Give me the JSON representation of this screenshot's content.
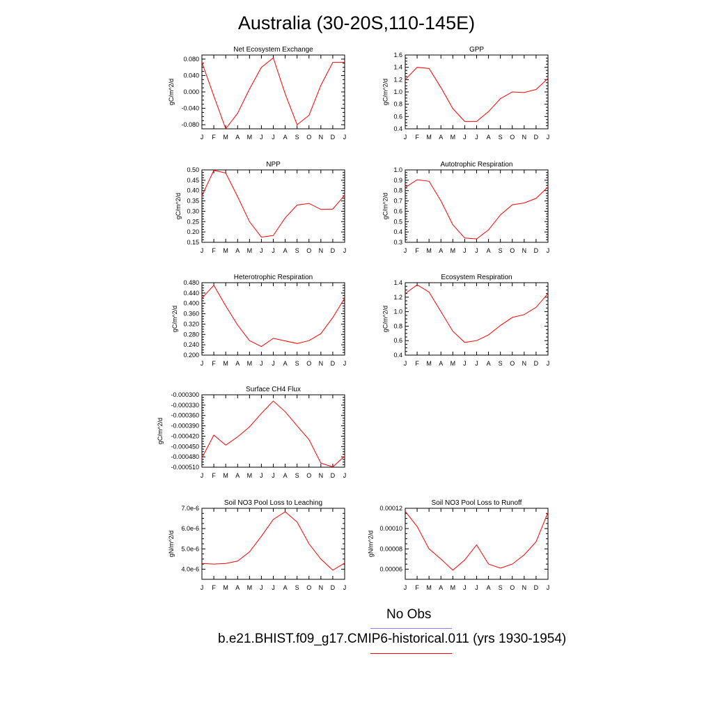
{
  "page_title": "Australia (30-20S,110-145E)",
  "colors": {
    "model_line": "#ff0000",
    "obs_line": "#8080ff",
    "axis": "#000000"
  },
  "legend": {
    "obs_label": "No Obs",
    "model_label": "b.e21.BHIST.f09_g17.CMIP6-historical.011 (yrs 1930-1954)"
  },
  "chart_data": [
    {
      "type": "line",
      "title": "Net Ecosystem Exchange",
      "ylabel": "gC/m^2/d",
      "xlabel": "",
      "x": [
        "J",
        "F",
        "M",
        "A",
        "M",
        "J",
        "J",
        "A",
        "S",
        "O",
        "N",
        "D",
        "J"
      ],
      "ylim": [
        -0.09,
        0.09
      ],
      "yticks": [
        -0.08,
        -0.04,
        0.0,
        0.04,
        0.08
      ],
      "ytick_labels": [
        "-0.080",
        "-0.040",
        "0.000",
        "0.040",
        "0.080"
      ],
      "series": [
        {
          "values": [
            0.072,
            -0.01,
            -0.09,
            -0.052,
            0.007,
            0.06,
            0.083,
            -0.005,
            -0.08,
            -0.057,
            0.016,
            0.072,
            0.072
          ]
        }
      ]
    },
    {
      "type": "line",
      "title": "GPP",
      "ylabel": "gC/m^2/d",
      "xlabel": "",
      "x": [
        "J",
        "F",
        "M",
        "A",
        "M",
        "J",
        "J",
        "A",
        "S",
        "O",
        "N",
        "D",
        "J"
      ],
      "ylim": [
        0.4,
        1.6
      ],
      "yticks": [
        0.4,
        0.6,
        0.8,
        1.0,
        1.2,
        1.4,
        1.6
      ],
      "ytick_labels": [
        "0.4",
        "0.6",
        "0.8",
        "1.0",
        "1.2",
        "1.4",
        "1.6"
      ],
      "series": [
        {
          "values": [
            1.2,
            1.4,
            1.38,
            1.07,
            0.73,
            0.52,
            0.52,
            0.68,
            0.89,
            1.0,
            0.99,
            1.04,
            1.22
          ]
        }
      ]
    },
    {
      "type": "line",
      "title": "NPP",
      "ylabel": "gC/m^2/d",
      "xlabel": "",
      "x": [
        "J",
        "F",
        "M",
        "A",
        "M",
        "J",
        "J",
        "A",
        "S",
        "O",
        "N",
        "D",
        "J"
      ],
      "ylim": [
        0.15,
        0.5
      ],
      "yticks": [
        0.15,
        0.2,
        0.25,
        0.3,
        0.35,
        0.4,
        0.45,
        0.5
      ],
      "ytick_labels": [
        "0.15",
        "0.20",
        "0.25",
        "0.30",
        "0.35",
        "0.40",
        "0.45",
        "0.50"
      ],
      "series": [
        {
          "values": [
            0.375,
            0.498,
            0.485,
            0.37,
            0.25,
            0.175,
            0.183,
            0.268,
            0.33,
            0.338,
            0.309,
            0.311,
            0.378
          ]
        }
      ]
    },
    {
      "type": "line",
      "title": "Autotrophic Respiration",
      "ylabel": "gC/m^2/d",
      "xlabel": "",
      "x": [
        "J",
        "F",
        "M",
        "A",
        "M",
        "J",
        "J",
        "A",
        "S",
        "O",
        "N",
        "D",
        "J"
      ],
      "ylim": [
        0.3,
        1.0
      ],
      "yticks": [
        0.3,
        0.4,
        0.5,
        0.6,
        0.7,
        0.8,
        0.9,
        1.0
      ],
      "ytick_labels": [
        "0.3",
        "0.4",
        "0.5",
        "0.6",
        "0.7",
        "0.8",
        "0.9",
        "1.0"
      ],
      "series": [
        {
          "values": [
            0.83,
            0.905,
            0.89,
            0.7,
            0.47,
            0.342,
            0.333,
            0.42,
            0.565,
            0.663,
            0.68,
            0.725,
            0.835
          ]
        }
      ]
    },
    {
      "type": "line",
      "title": "Heterotrophic Respiration",
      "ylabel": "gC/m^2/d",
      "xlabel": "",
      "x": [
        "J",
        "F",
        "M",
        "A",
        "M",
        "J",
        "J",
        "A",
        "S",
        "O",
        "N",
        "D",
        "J"
      ],
      "ylim": [
        0.2,
        0.48
      ],
      "yticks": [
        0.2,
        0.24,
        0.28,
        0.32,
        0.36,
        0.4,
        0.44,
        0.48
      ],
      "ytick_labels": [
        "0.200",
        "0.240",
        "0.280",
        "0.320",
        "0.360",
        "0.400",
        "0.440",
        "0.480"
      ],
      "series": [
        {
          "values": [
            0.42,
            0.47,
            0.39,
            0.316,
            0.256,
            0.233,
            0.265,
            0.255,
            0.245,
            0.256,
            0.283,
            0.345,
            0.42
          ]
        }
      ]
    },
    {
      "type": "line",
      "title": "Ecosystem Respiration",
      "ylabel": "gC/m^2/d",
      "xlabel": "",
      "x": [
        "J",
        "F",
        "M",
        "A",
        "M",
        "J",
        "J",
        "A",
        "S",
        "O",
        "N",
        "D",
        "J"
      ],
      "ylim": [
        0.4,
        1.4
      ],
      "yticks": [
        0.4,
        0.6,
        0.8,
        1.0,
        1.2,
        1.4
      ],
      "ytick_labels": [
        "0.4",
        "0.6",
        "0.8",
        "1.0",
        "1.2",
        "1.4"
      ],
      "series": [
        {
          "values": [
            1.25,
            1.37,
            1.27,
            1.0,
            0.73,
            0.575,
            0.6,
            0.68,
            0.81,
            0.92,
            0.96,
            1.06,
            1.25
          ]
        }
      ]
    },
    {
      "type": "line",
      "title": "Surface CH4 Flux",
      "ylabel": "gC/m^2/d",
      "xlabel": "",
      "x": [
        "J",
        "F",
        "M",
        "A",
        "M",
        "J",
        "J",
        "A",
        "S",
        "O",
        "N",
        "D",
        "J"
      ],
      "ylim": [
        -0.00051,
        -0.0003
      ],
      "yticks": [
        -0.00051,
        -0.00048,
        -0.00045,
        -0.00042,
        -0.00039,
        -0.00036,
        -0.00033,
        -0.0003
      ],
      "ytick_labels": [
        "-0.000510",
        "-0.000480",
        "-0.000450",
        "-0.000420",
        "-0.000390",
        "-0.000360",
        "-0.000330",
        "-0.000300"
      ],
      "series": [
        {
          "values": [
            -0.000483,
            -0.000417,
            -0.000446,
            -0.000422,
            -0.000393,
            -0.000354,
            -0.000318,
            -0.000349,
            -0.00039,
            -0.00043,
            -0.000498,
            -0.000509,
            -0.000478
          ]
        }
      ]
    },
    {
      "type": "line",
      "title": "Soil NO3 Pool Loss to Leaching",
      "ylabel": "gN/m^2/d",
      "xlabel": "",
      "x": [
        "J",
        "F",
        "M",
        "A",
        "M",
        "J",
        "J",
        "A",
        "S",
        "O",
        "N",
        "D",
        "J"
      ],
      "ylim": [
        3.5e-06,
        7e-06
      ],
      "yticks": [
        4e-06,
        5e-06,
        6e-06,
        7e-06
      ],
      "ytick_labels": [
        "4.0e-6",
        "5.0e-6",
        "6.0e-6",
        "7.0e-6"
      ],
      "series": [
        {
          "values": [
            4.28e-06,
            4.25e-06,
            4.28e-06,
            4.4e-06,
            4.85e-06,
            5.62e-06,
            6.45e-06,
            6.83e-06,
            6.32e-06,
            5.25e-06,
            4.5e-06,
            3.95e-06,
            4.3e-06
          ]
        }
      ]
    },
    {
      "type": "line",
      "title": "Soil NO3 Pool Loss to Runoff",
      "ylabel": "gN/m^2/d",
      "xlabel": "",
      "x": [
        "J",
        "F",
        "M",
        "A",
        "M",
        "J",
        "J",
        "A",
        "S",
        "O",
        "N",
        "D",
        "J"
      ],
      "ylim": [
        5e-05,
        0.00012
      ],
      "yticks": [
        6e-05,
        8e-05,
        0.0001,
        0.00012
      ],
      "ytick_labels": [
        "0.00006",
        "0.00008",
        "0.00010",
        "0.00012"
      ],
      "series": [
        {
          "values": [
            0.000117,
            0.000102,
            8e-05,
            7e-05,
            5.9e-05,
            6.9e-05,
            8.4e-05,
            6.5e-05,
            6.1e-05,
            6.5e-05,
            7.4e-05,
            8.7e-05,
            0.000116
          ]
        }
      ]
    }
  ]
}
